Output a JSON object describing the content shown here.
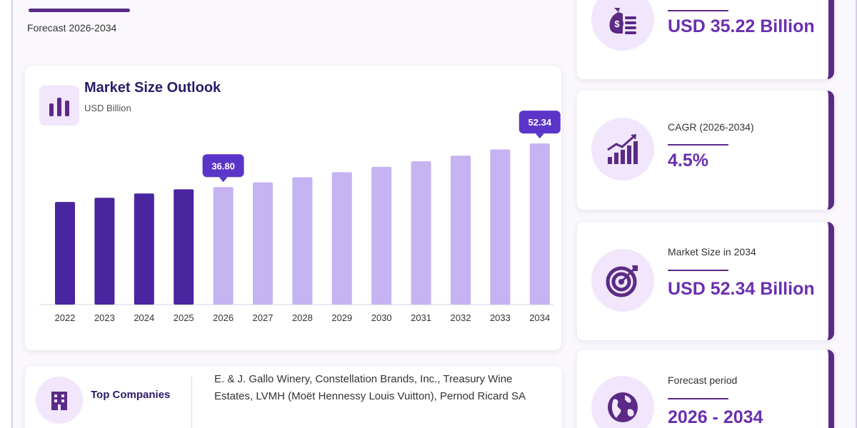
{
  "header": {
    "forecast_label": "Forecast 2026-2034"
  },
  "chart_data": {
    "type": "bar",
    "title": "Market Size Outlook",
    "subtitle": "USD Billion",
    "categories": [
      "2022",
      "2023",
      "2024",
      "2025",
      "2026",
      "2027",
      "2028",
      "2029",
      "2030",
      "2031",
      "2032",
      "2033",
      "2034"
    ],
    "values": [
      31.5,
      33.0,
      34.5,
      36.0,
      36.8,
      38.5,
      40.3,
      42.1,
      44.0,
      46.0,
      48.0,
      50.2,
      52.34
    ],
    "historical_color": "#4a25a0",
    "forecast_color": "#c5b3f2",
    "callout_color": "#5b35c9",
    "callouts": [
      {
        "index": 4,
        "label": "36.80"
      },
      {
        "index": 12,
        "label": "52.34"
      }
    ],
    "ylim": [
      0,
      60
    ]
  },
  "stats": [
    {
      "label": "",
      "value": "USD 35.22 Billion",
      "icon": "money-bag-icon"
    },
    {
      "label": "CAGR (2026-2034)",
      "value": "4.5%",
      "icon": "growth-chart-icon"
    },
    {
      "label": "Market Size in 2034",
      "value": "USD 52.34 Billion",
      "icon": "target-icon"
    },
    {
      "label": "Forecast period",
      "value": "2026 - 2034",
      "icon": "globe-icon"
    }
  ],
  "companies": {
    "title": "Top Companies",
    "list": "E. & J. Gallo Winery, Constellation Brands, Inc., Treasury Wine Estates, LVMH (Moët Hennessy Louis Vuitton), Pernod Ricard SA",
    "icon": "building-icon"
  },
  "colors": {
    "accent": "#5b2a86",
    "value_text": "#6a2fb0",
    "icon_bg": "#f1e6fb"
  }
}
